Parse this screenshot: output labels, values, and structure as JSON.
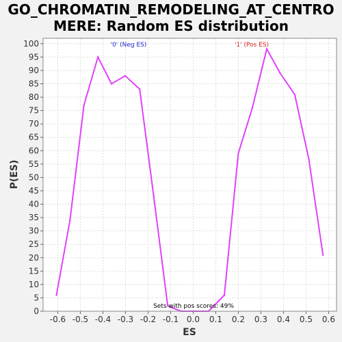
{
  "title_line1": "GO_CHROMATIN_REMODELING_AT_CENTRO",
  "title_line2": "MERE: Random ES distribution",
  "colors": {
    "line": "#e040fb",
    "neg": "#2222cc",
    "pos": "#dd2222",
    "grid": "#dddddd",
    "plot_bg": "#ffffff"
  },
  "chart_data": {
    "type": "line",
    "title": "GO_CHROMATIN_REMODELING_AT_CENTROMERE: Random ES distribution",
    "xlabel": "ES",
    "ylabel": "P(ES)",
    "xlim": [
      -0.665,
      0.635
    ],
    "ylim": [
      0,
      102
    ],
    "xticks": [
      -0.6,
      -0.5,
      -0.4,
      -0.3,
      -0.2,
      -0.1,
      0.0,
      0.1,
      0.2,
      0.3,
      0.4,
      0.5,
      0.6
    ],
    "xtick_labels": [
      "-0.6",
      "-0.5",
      "-0.4",
      "-0.3",
      "-0.2",
      "-0.1",
      "0.0",
      "0.1",
      "0.2",
      "0.3",
      "0.4",
      "0.5",
      "0.6"
    ],
    "yticks": [
      0,
      5,
      10,
      15,
      20,
      25,
      30,
      35,
      40,
      45,
      50,
      55,
      60,
      65,
      70,
      75,
      80,
      85,
      90,
      95,
      100
    ],
    "grid": true,
    "series": [
      {
        "x": [
          -0.606,
          -0.546,
          -0.484,
          -0.422,
          -0.362,
          -0.301,
          -0.237,
          -0.175,
          -0.113,
          -0.054,
          0.007,
          0.068,
          0.138,
          0.2,
          0.262,
          0.326,
          0.385,
          0.45,
          0.512,
          0.575
        ],
        "y": [
          6,
          34,
          77,
          95,
          85,
          88,
          83,
          43,
          2,
          0,
          0,
          0,
          6,
          59,
          76,
          98,
          89,
          81,
          57,
          21
        ]
      }
    ],
    "annotations": {
      "neg_label": "'0' (Neg ES)",
      "pos_label": "'1' (Pos ES)",
      "footer": "Sets with pos scores: 49%"
    }
  }
}
